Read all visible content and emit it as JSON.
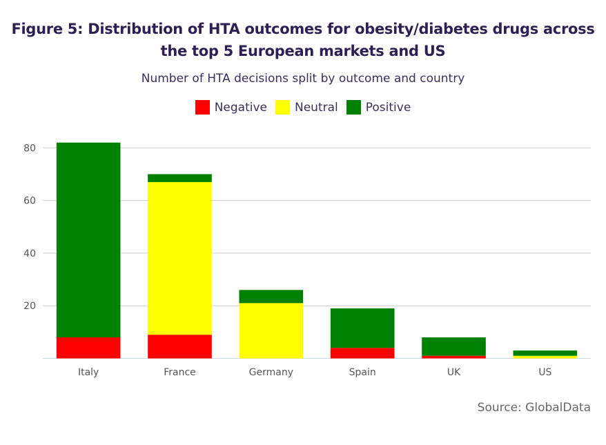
{
  "chart_data": {
    "type": "bar",
    "stacked": true,
    "title": "Figure 5: Distribution of HTA outcomes for obesity/diabetes drugs across the top 5 European markets and US",
    "title_lines": [
      "Figure 5: Distribution of HTA outcomes for obesity/diabetes drugs across",
      "the top 5 European markets and US"
    ],
    "subtitle": "Number of HTA decisions split by outcome and country",
    "xlabel": "",
    "ylabel": "",
    "categories": [
      "Italy",
      "France",
      "Germany",
      "Spain",
      "UK",
      "US"
    ],
    "series": [
      {
        "name": "Negative",
        "color": "#ff0000",
        "values": [
          8,
          9,
          0,
          4,
          1,
          0
        ]
      },
      {
        "name": "Neutral",
        "color": "#ffff00",
        "values": [
          0,
          58,
          21,
          0,
          0,
          1
        ]
      },
      {
        "name": "Positive",
        "color": "#008000",
        "values": [
          74,
          3,
          5,
          15,
          7,
          2
        ]
      }
    ],
    "ylim": [
      0,
      80
    ],
    "yticks": [
      20,
      40,
      60,
      80
    ],
    "grid": true,
    "legend_position": "top-center",
    "source": "Source: GlobalData"
  }
}
